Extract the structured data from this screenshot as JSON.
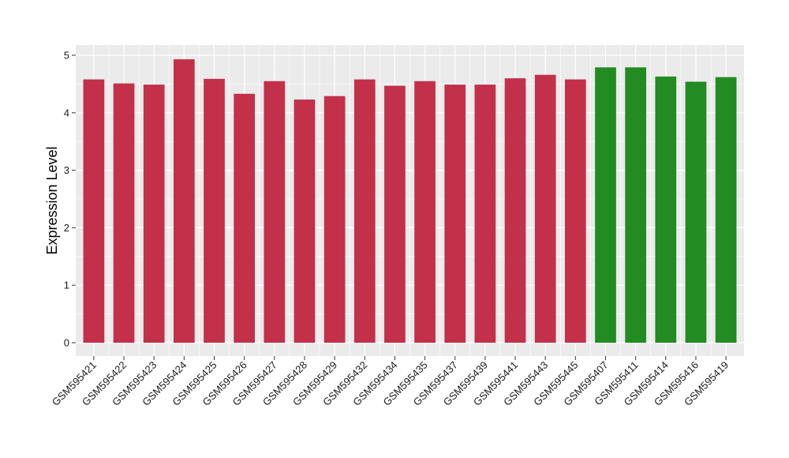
{
  "chart_data": {
    "type": "bar",
    "title": "",
    "xlabel": "",
    "ylabel": "Expression Level",
    "ylim": [
      0,
      5
    ],
    "yticks": [
      0,
      1,
      2,
      3,
      4,
      5
    ],
    "grid": true,
    "legend": "none",
    "categories": [
      "GSM595421",
      "GSM595422",
      "GSM595423",
      "GSM595424",
      "GSM595425",
      "GSM595426",
      "GSM595427",
      "GSM595428",
      "GSM595429",
      "GSM595432",
      "GSM595434",
      "GSM595435",
      "GSM595437",
      "GSM595439",
      "GSM595441",
      "GSM595443",
      "GSM595445",
      "GSM595407",
      "GSM595411",
      "GSM595414",
      "GSM595416",
      "GSM595419"
    ],
    "values": [
      4.58,
      4.51,
      4.49,
      4.93,
      4.59,
      4.33,
      4.55,
      4.23,
      4.29,
      4.58,
      4.47,
      4.55,
      4.49,
      4.49,
      4.6,
      4.66,
      4.58,
      4.79,
      4.79,
      4.63,
      4.54,
      4.62
    ],
    "groups": [
      "red",
      "red",
      "red",
      "red",
      "red",
      "red",
      "red",
      "red",
      "red",
      "red",
      "red",
      "red",
      "red",
      "red",
      "red",
      "red",
      "red",
      "green",
      "green",
      "green",
      "green",
      "green"
    ],
    "colors": {
      "red": "#C3304A",
      "green": "#228B22",
      "panel": "#EBEBEB",
      "grid": "#FFFFFF"
    }
  }
}
